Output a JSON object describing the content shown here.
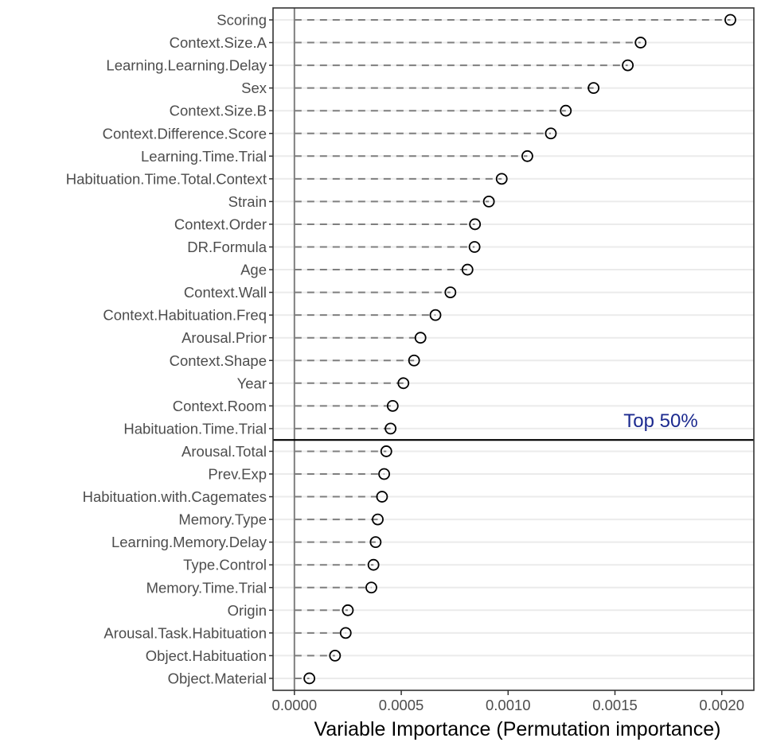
{
  "chart_data": {
    "type": "scatter",
    "style": "dot-plot (Cleveland) with dashed leader lines",
    "xlabel": "Variable Importance (Permutation importance)",
    "ylabel": "",
    "xlim": [
      -0.0001,
      0.00215
    ],
    "x_ticks": [
      0.0,
      0.0005,
      0.001,
      0.0015,
      0.002
    ],
    "x_tick_labels": [
      "0.0000",
      "0.0005",
      "0.0010",
      "0.0015",
      "0.0020"
    ],
    "grid": "horizontal gridlines at each variable",
    "vertical_reference_line": 0.0,
    "categories": [
      "Scoring",
      "Context.Size.A",
      "Learning.Learning.Delay",
      "Sex",
      "Context.Size.B",
      "Context.Difference.Score",
      "Learning.Time.Trial",
      "Habituation.Time.Total.Context",
      "Strain",
      "Context.Order",
      "DR.Formula",
      "Age",
      "Context.Wall",
      "Context.Habituation.Freq",
      "Arousal.Prior",
      "Context.Shape",
      "Year",
      "Context.Room",
      "Habituation.Time.Trial",
      "Arousal.Total",
      "Prev.Exp",
      "Habituation.with.Cagemates",
      "Memory.Type",
      "Learning.Memory.Delay",
      "Type.Control",
      "Memory.Time.Trial",
      "Origin",
      "Arousal.Task.Habituation",
      "Object.Habituation",
      "Object.Material"
    ],
    "values": [
      0.00204,
      0.00162,
      0.00156,
      0.0014,
      0.00127,
      0.0012,
      0.00109,
      0.00097,
      0.00091,
      0.000845,
      0.000843,
      0.00081,
      0.00073,
      0.00066,
      0.00059,
      0.00056,
      0.00051,
      0.00046,
      0.00045,
      0.00043,
      0.00042,
      0.00041,
      0.00039,
      0.00038,
      0.00037,
      0.00036,
      0.00025,
      0.00024,
      0.00019,
      7e-05
    ],
    "threshold_line": {
      "after_category": "Habituation.Time.Trial",
      "label": "Top 50%",
      "label_color": "#1c2a8f"
    },
    "colors": {
      "points_stroke": "#000000",
      "leader": "#7f7f7f",
      "grid": "#ebebeb",
      "axis": "#333333"
    }
  }
}
